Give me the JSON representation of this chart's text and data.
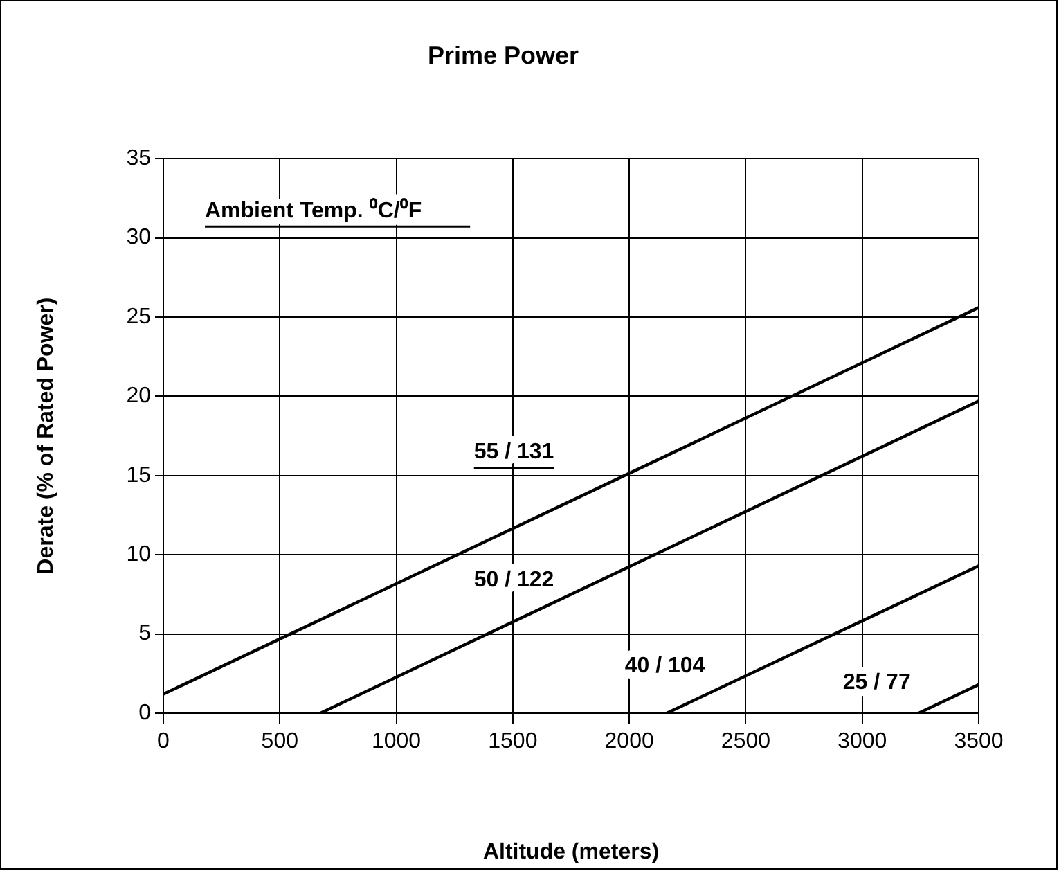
{
  "chart_data": {
    "type": "line",
    "title": "Prime Power",
    "xlabel": "Altitude (meters)",
    "ylabel": "Derate (% of Rated Power)",
    "legend_title": "Ambient Temp. ⁰C/⁰F",
    "xlim": [
      0,
      3500
    ],
    "xticks": [
      0,
      500,
      1000,
      1500,
      2000,
      2500,
      3000,
      3500
    ],
    "ylim": [
      0,
      35
    ],
    "yticks": [
      0,
      5,
      10,
      15,
      20,
      25,
      30,
      35
    ],
    "grid": true,
    "legend": false,
    "marker": "none",
    "line_style": "solid",
    "series": [
      {
        "name": "55 / 131",
        "color": "#000000",
        "x": [
          0,
          3500
        ],
        "values": [
          1.2,
          25.6
        ]
      },
      {
        "name": "50 / 122",
        "color": "#000000",
        "x": [
          674,
          3500
        ],
        "values": [
          0,
          19.7
        ]
      },
      {
        "name": "40 / 104",
        "color": "#000000",
        "x": [
          2161,
          3500
        ],
        "values": [
          0,
          9.3
        ]
      },
      {
        "name": "25 / 77",
        "color": "#000000",
        "x": [
          3242,
          3500
        ],
        "values": [
          0,
          1.8
        ]
      }
    ]
  }
}
